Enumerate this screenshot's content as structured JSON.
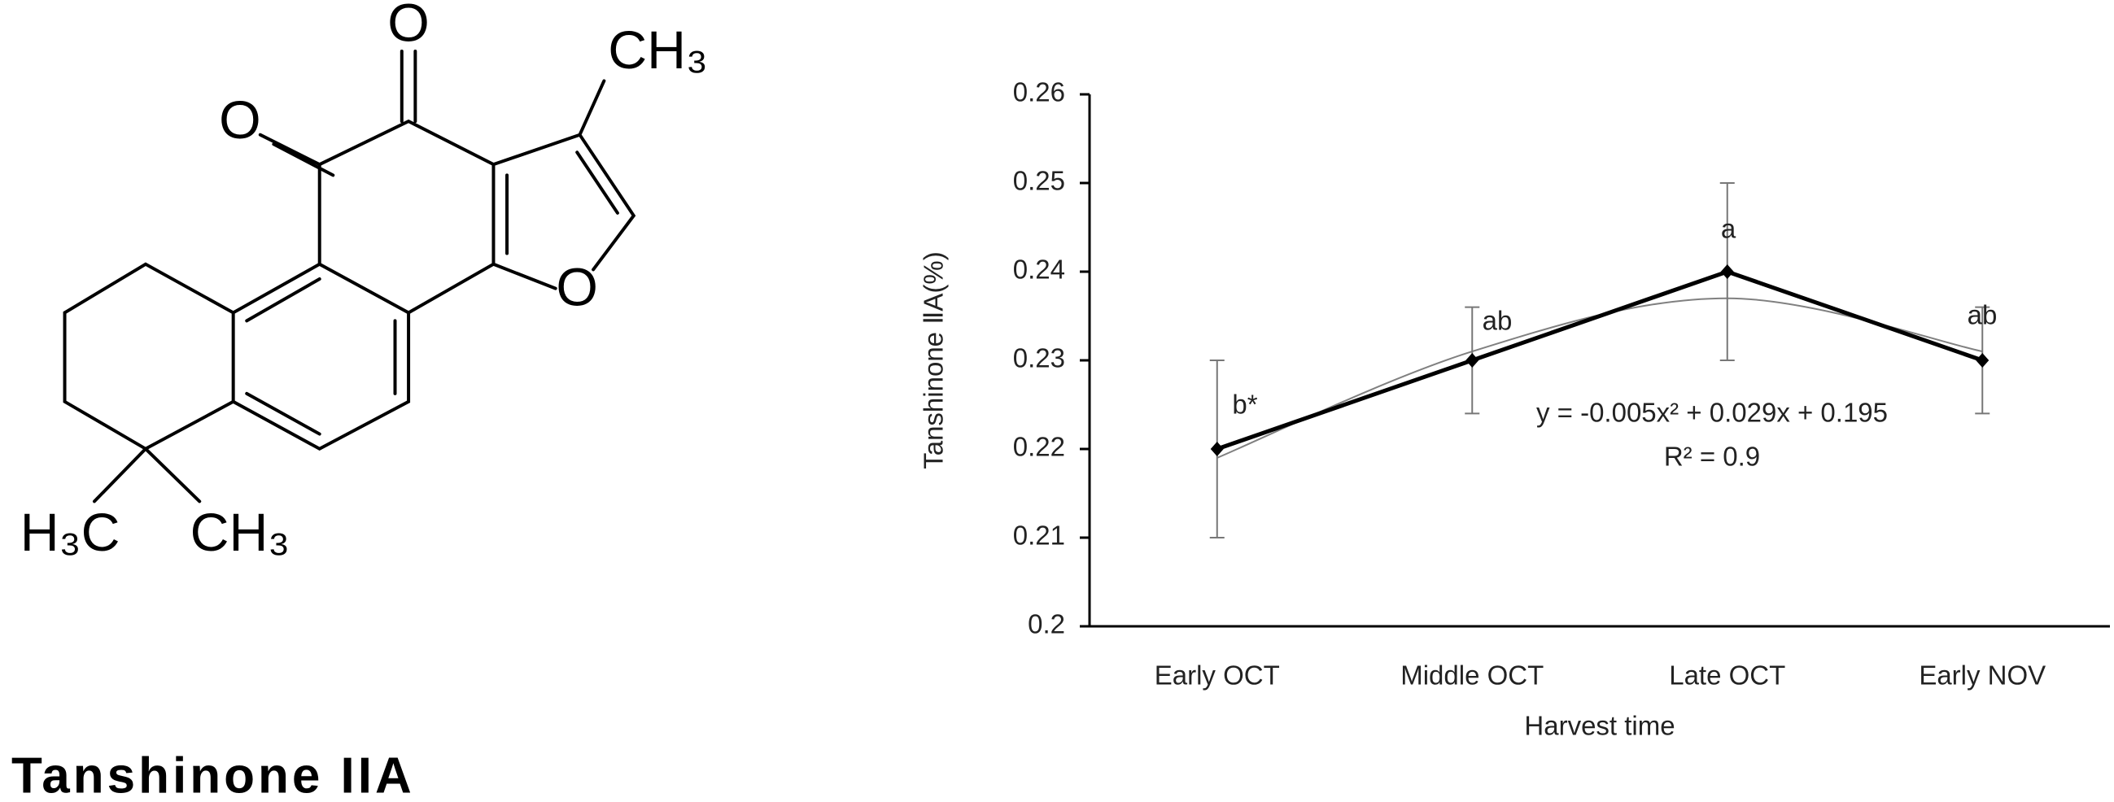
{
  "structure": {
    "labels": [
      "O",
      "O",
      "CH₃",
      "O",
      "H₃C",
      "CH₃"
    ],
    "name": "Tanshinone IIA"
  },
  "chart_data": {
    "type": "line",
    "y_label": "Tanshinone ⅡA(%)",
    "x_label": "Harvest time",
    "categories": [
      "Early OCT",
      "Middle OCT",
      "Late OCT",
      "Early NOV"
    ],
    "values": [
      0.22,
      0.23,
      0.24,
      0.23
    ],
    "errors": [
      0.01,
      0.006,
      0.01,
      0.006
    ],
    "color": "#000000",
    "letters": [
      "b*",
      "ab",
      "a",
      "ab"
    ],
    "trend": {
      "values": [
        0.219,
        0.231,
        0.237,
        0.231
      ],
      "color": "#808080"
    },
    "equation": "y = -0.005x² + 0.029x + 0.195",
    "r_squared": "R² = 0.9",
    "ylim": [
      0.2,
      0.26
    ],
    "yticks": [
      0.2,
      0.21,
      0.22,
      0.23,
      0.24,
      0.25,
      0.26
    ]
  }
}
